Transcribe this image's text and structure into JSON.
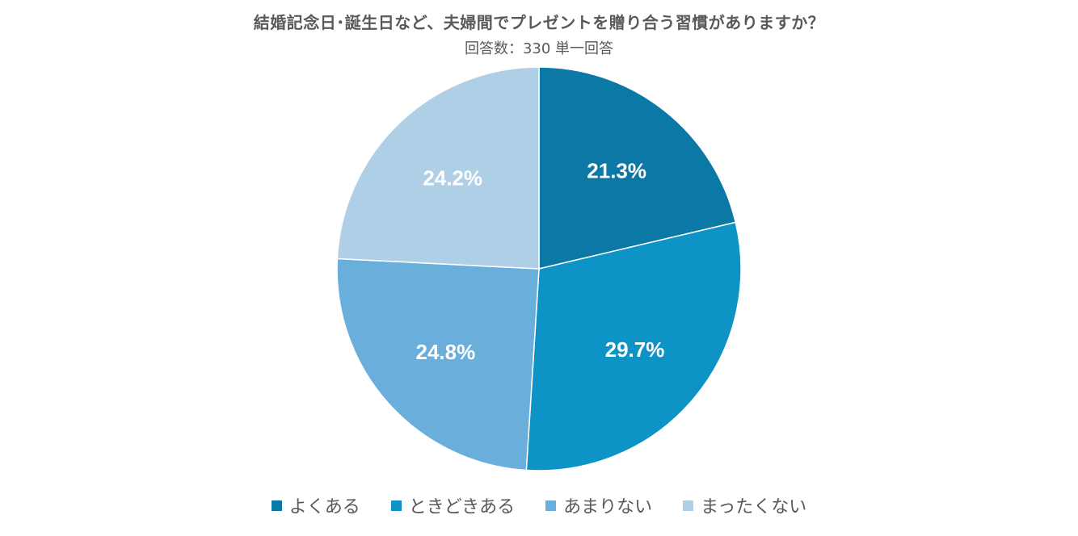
{
  "chart_data": {
    "type": "pie",
    "title": "結婚記念日･誕生日など、夫婦間でプレゼントを贈り合う習慣がありますか？",
    "subtitle": "回答数：330 単一回答",
    "categories": [
      "よくある",
      "ときどきある",
      "あまりない",
      "まったくない"
    ],
    "values": [
      21.3,
      29.7,
      24.8,
      24.2
    ],
    "labels": [
      "21.3%",
      "29.7%",
      "24.8%",
      "24.2%"
    ],
    "colors": [
      "#0b78a6",
      "#0e93c6",
      "#6aaedb",
      "#afcfe7"
    ],
    "start_angle_deg": 0,
    "direction": "clockwise",
    "legend_position": "bottom"
  }
}
